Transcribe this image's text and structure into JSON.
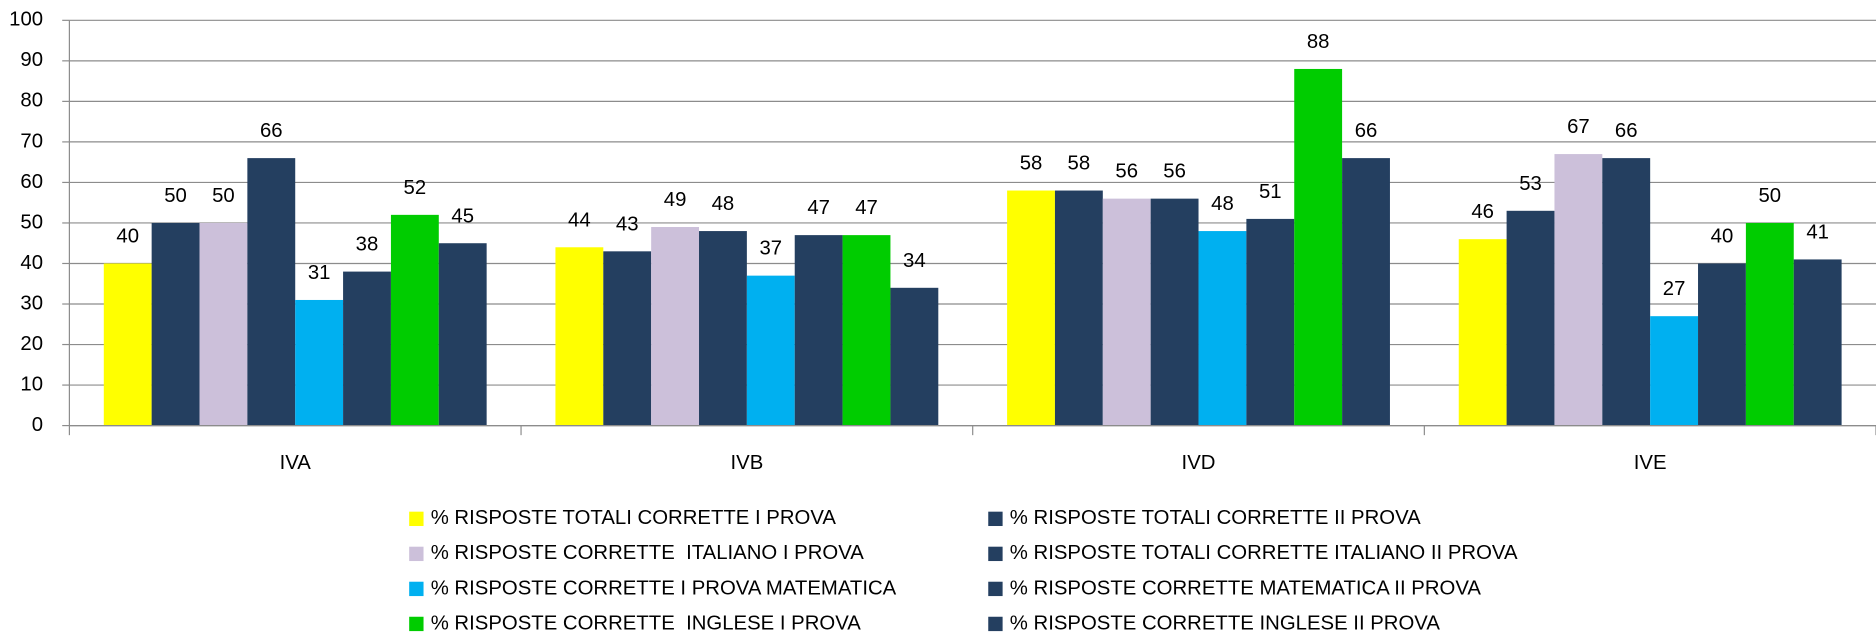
{
  "chart_data": {
    "type": "bar",
    "categories": [
      "IVA",
      "IVB",
      "IVD",
      "IVE"
    ],
    "series": [
      {
        "name": "% RISPOSTE TOTALI CORRETTE I PROVA",
        "color": "#ffff00",
        "values": [
          40,
          44,
          58,
          46
        ]
      },
      {
        "name": "% RISPOSTE TOTALI CORRETTE II PROVA",
        "color": "#243f60",
        "values": [
          50,
          43,
          58,
          53
        ]
      },
      {
        "name": "% RISPOSTE CORRETTE  ITALIANO I PROVA",
        "color": "#ccc0da",
        "values": [
          50,
          49,
          56,
          67
        ]
      },
      {
        "name": "% RISPOSTE TOTALI CORRETTE ITALIANO II PROVA",
        "color": "#243f60",
        "values": [
          66,
          48,
          56,
          66
        ]
      },
      {
        "name": "% RISPOSTE CORRETTE I PROVA MATEMATICA",
        "color": "#00b0f0",
        "values": [
          31,
          37,
          48,
          27
        ]
      },
      {
        "name": "% RISPOSTE CORRETTE MATEMATICA II PROVA",
        "color": "#243f60",
        "values": [
          38,
          47,
          51,
          40
        ]
      },
      {
        "name": "% RISPOSTE CORRETTE  INGLESE I PROVA",
        "color": "#00cc00",
        "values": [
          52,
          47,
          88,
          50
        ]
      },
      {
        "name": "% RISPOSTE CORRETTE INGLESE II PROVA",
        "color": "#243f60",
        "values": [
          45,
          34,
          66,
          41
        ]
      }
    ],
    "ylim": [
      0,
      100
    ],
    "yticks": [
      0,
      10,
      20,
      30,
      40,
      50,
      60,
      70,
      80,
      90,
      100
    ],
    "grid": true,
    "legend": "bottom"
  }
}
